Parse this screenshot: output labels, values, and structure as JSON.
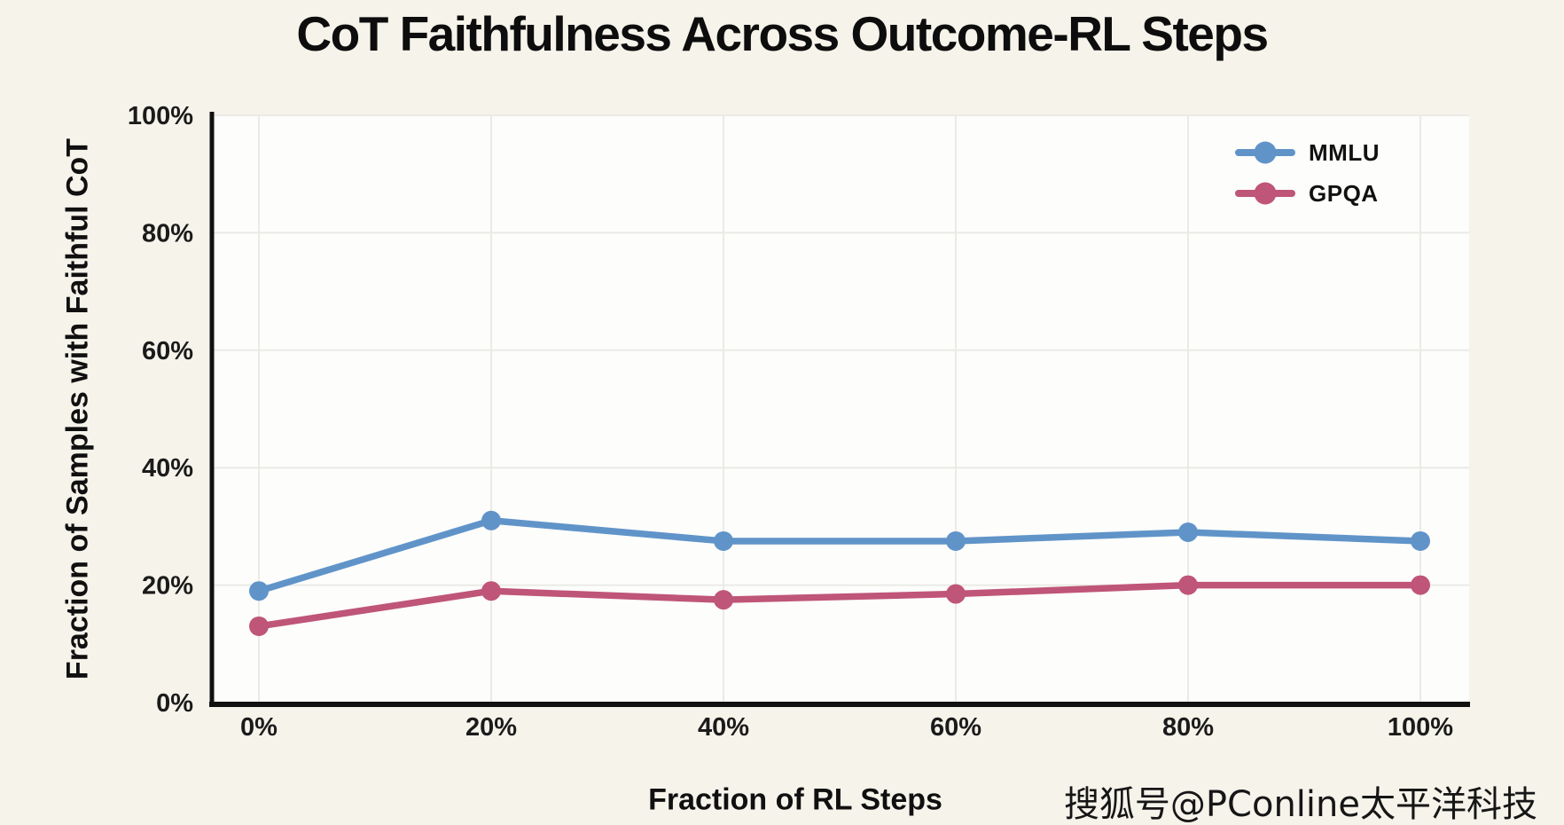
{
  "page": {
    "background": "#f6f3eb",
    "plot_background": "#fdfdfb",
    "grid_color": "#eaeae6",
    "axis_color": "#111111",
    "tick_color": "#1b1b1b"
  },
  "chart_data": {
    "type": "line",
    "title": "CoT Faithfulness Across Outcome-RL Steps",
    "xlabel": "Fraction of RL Steps",
    "ylabel": "Fraction of Samples with Faithful CoT",
    "x": [
      0,
      20,
      40,
      60,
      80,
      100
    ],
    "x_tick_labels": [
      "0%",
      "20%",
      "40%",
      "60%",
      "80%",
      "100%"
    ],
    "y_ticks": [
      0,
      20,
      40,
      60,
      80,
      100
    ],
    "y_tick_labels": [
      "0%",
      "20%",
      "40%",
      "60%",
      "80%",
      "100%"
    ],
    "xlim": [
      0,
      100
    ],
    "ylim": [
      0,
      100
    ],
    "grid": true,
    "legend_position": "top-right",
    "series": [
      {
        "name": "MMLU",
        "color": "#6094c9",
        "values": [
          19,
          31,
          27.5,
          27.5,
          29,
          27.5
        ]
      },
      {
        "name": "GPQA",
        "color": "#bf5578",
        "values": [
          13,
          19,
          17.5,
          18.5,
          20,
          20
        ]
      }
    ]
  },
  "watermark": {
    "text": "搜狐号@PConline太平洋科技"
  }
}
